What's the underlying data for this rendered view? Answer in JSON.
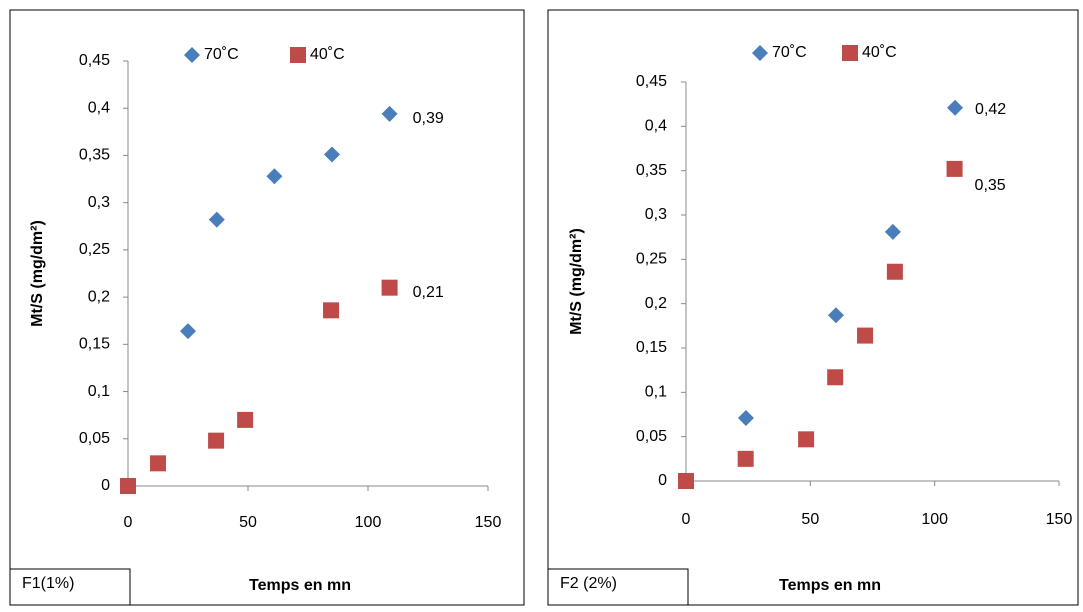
{
  "chart_data": [
    {
      "type": "scatter",
      "annotation": "F1(1%)",
      "x_label": "Temps en mn",
      "y_label": "Mt/S (mg/dm²)",
      "xlim": [
        0,
        150
      ],
      "xticks": [
        0,
        50,
        100,
        150
      ],
      "ylim": [
        0,
        0.45
      ],
      "yticks": [
        0,
        {
          "value": 0.05,
          "label": "0,05"
        },
        {
          "value": 0.1,
          "label": "0,1"
        },
        {
          "value": 0.15,
          "label": "0,15"
        },
        {
          "value": 0.2,
          "label": "0,2"
        },
        {
          "value": 0.25,
          "label": "0,25"
        },
        {
          "value": 0.3,
          "label": "0,3"
        },
        {
          "value": 0.35,
          "label": "0,35"
        },
        {
          "value": 0.4,
          "label": "0,4"
        },
        {
          "value": 0.45,
          "label": "0,45"
        }
      ],
      "series": [
        {
          "name": "70˚C",
          "color": "#4a7ebb",
          "marker": "diamond",
          "x": [
            25,
            37,
            61,
            85,
            109
          ],
          "values": [
            0.164,
            0.282,
            0.328,
            0.351,
            0.394
          ],
          "value_labels": [
            null,
            null,
            null,
            null,
            "0,39"
          ]
        },
        {
          "name": "40˚C",
          "color": "#be4b48",
          "marker": "square",
          "x": [
            0,
            12.5,
            36.7,
            48.8,
            84.6,
            109
          ],
          "values": [
            0,
            0.024,
            0.048,
            0.07,
            0.186,
            0.21
          ],
          "value_labels": [
            null,
            null,
            null,
            null,
            null,
            "0,21"
          ]
        }
      ]
    },
    {
      "type": "scatter",
      "annotation": "F2 (2%)",
      "x_label": "Temps en mn",
      "y_label": "Mt/S (mg/dm²)",
      "xlim": [
        0,
        150
      ],
      "xticks": [
        0,
        50,
        100,
        150
      ],
      "ylim": [
        0,
        0.45
      ],
      "yticks": [
        0,
        {
          "value": 0.05,
          "label": "0,05"
        },
        {
          "value": 0.1,
          "label": "0,1"
        },
        {
          "value": 0.15,
          "label": "0,15"
        },
        {
          "value": 0.2,
          "label": "0,2"
        },
        {
          "value": 0.25,
          "label": "0,25"
        },
        {
          "value": 0.3,
          "label": "0,3"
        },
        {
          "value": 0.35,
          "label": "0,35"
        },
        {
          "value": 0.4,
          "label": "0,4"
        },
        {
          "value": 0.45,
          "label": "0,45"
        }
      ],
      "series": [
        {
          "name": "70˚C",
          "color": "#4a7ebb",
          "marker": "diamond",
          "x": [
            24.1,
            60.3,
            83.2,
            108.2
          ],
          "values": [
            0.071,
            0.187,
            0.281,
            0.421
          ],
          "value_labels": [
            null,
            null,
            null,
            "0,42"
          ]
        },
        {
          "name": "40˚C",
          "color": "#be4b48",
          "marker": "square",
          "x": [
            0,
            24,
            48.3,
            60,
            72,
            84,
            108
          ],
          "values": [
            0,
            0.025,
            0.047,
            0.117,
            0.164,
            0.236,
            0.352
          ],
          "value_labels": [
            null,
            null,
            null,
            null,
            null,
            null,
            "0,35"
          ]
        }
      ]
    }
  ]
}
